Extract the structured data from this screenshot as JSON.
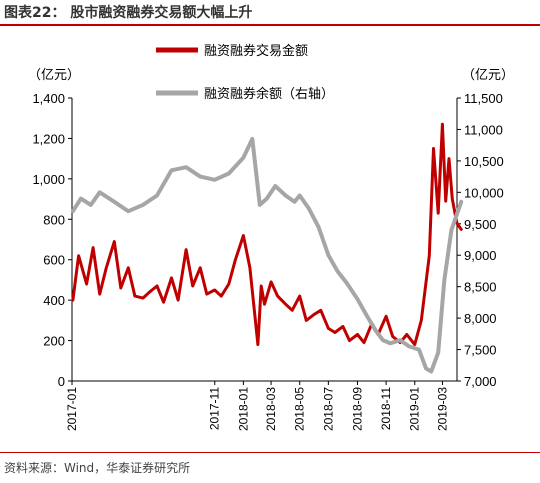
{
  "title": "图表22：  股市融资融券交易额大幅上升",
  "source": "资料来源：Wind，华泰证券研究所",
  "chart_data": {
    "type": "line",
    "left_axis": {
      "unit_label": "（亿元）",
      "range": [
        0,
        1400
      ],
      "ticks": [
        "0",
        "200",
        "400",
        "600",
        "800",
        "1,000",
        "1,200",
        "1,400"
      ]
    },
    "right_axis": {
      "unit_label": "（亿元）",
      "range": [
        7000,
        11500
      ],
      "ticks": [
        "7,000",
        "7,500",
        "8,000",
        "8,500",
        "9,000",
        "9,500",
        "10,000",
        "10,500",
        "11,000",
        "11,500"
      ]
    },
    "x_range": [
      "2017-01",
      "2019-04"
    ],
    "x_ticks": [
      "2017-01",
      "2017-11",
      "2018-01",
      "2018-03",
      "2018-05",
      "2018-07",
      "2018-09",
      "2018-11",
      "2019-01",
      "2019-03"
    ],
    "series": [
      {
        "name": "融资融券交易金额",
        "axis": "left",
        "color": "#c00000",
        "x": [
          "2017-01-03",
          "2017-01-15",
          "2017-02-01",
          "2017-02-15",
          "2017-03-01",
          "2017-03-15",
          "2017-04-01",
          "2017-04-15",
          "2017-05-01",
          "2017-05-15",
          "2017-06-01",
          "2017-06-15",
          "2017-07-01",
          "2017-07-15",
          "2017-08-01",
          "2017-08-15",
          "2017-09-01",
          "2017-09-15",
          "2017-10-01",
          "2017-10-15",
          "2017-11-01",
          "2017-11-15",
          "2017-12-01",
          "2017-12-15",
          "2018-01-01",
          "2018-01-15",
          "2018-02-01",
          "2018-02-08",
          "2018-02-15",
          "2018-03-01",
          "2018-03-15",
          "2018-04-01",
          "2018-04-15",
          "2018-05-01",
          "2018-05-15",
          "2018-06-01",
          "2018-06-15",
          "2018-07-01",
          "2018-07-15",
          "2018-08-01",
          "2018-08-15",
          "2018-09-01",
          "2018-09-15",
          "2018-10-01",
          "2018-10-15",
          "2018-11-01",
          "2018-11-15",
          "2018-12-01",
          "2018-12-15",
          "2019-01-01",
          "2019-01-15",
          "2019-02-01",
          "2019-02-10",
          "2019-02-20",
          "2019-03-01",
          "2019-03-08",
          "2019-03-15",
          "2019-03-22",
          "2019-04-01",
          "2019-04-10"
        ],
        "values": [
          400,
          620,
          480,
          660,
          430,
          560,
          690,
          460,
          560,
          420,
          410,
          440,
          470,
          390,
          510,
          400,
          650,
          470,
          560,
          430,
          450,
          420,
          480,
          600,
          720,
          560,
          180,
          470,
          380,
          490,
          420,
          380,
          350,
          420,
          300,
          330,
          350,
          260,
          240,
          270,
          200,
          230,
          190,
          280,
          230,
          320,
          220,
          190,
          230,
          180,
          300,
          620,
          1150,
          830,
          1270,
          890,
          1100,
          900,
          780,
          750
        ]
      },
      {
        "name": "融资融券余额（右轴）",
        "axis": "right",
        "color": "#a6a6a6",
        "x": [
          "2017-01-03",
          "2017-01-20",
          "2017-02-10",
          "2017-03-01",
          "2017-04-01",
          "2017-05-01",
          "2017-06-01",
          "2017-07-01",
          "2017-08-01",
          "2017-09-01",
          "2017-10-01",
          "2017-11-01",
          "2017-12-01",
          "2018-01-01",
          "2018-01-20",
          "2018-02-05",
          "2018-02-20",
          "2018-03-10",
          "2018-04-01",
          "2018-04-20",
          "2018-05-01",
          "2018-05-20",
          "2018-06-10",
          "2018-07-01",
          "2018-07-20",
          "2018-08-10",
          "2018-09-01",
          "2018-09-20",
          "2018-10-10",
          "2018-10-25",
          "2018-11-10",
          "2018-12-01",
          "2018-12-20",
          "2019-01-10",
          "2019-01-25",
          "2019-02-05",
          "2019-02-20",
          "2019-03-05",
          "2019-03-20",
          "2019-04-10"
        ],
        "values": [
          9700,
          9900,
          9800,
          10000,
          9850,
          9700,
          9800,
          9950,
          10350,
          10400,
          10250,
          10200,
          10300,
          10550,
          10850,
          9800,
          9900,
          10100,
          9950,
          9850,
          9950,
          9750,
          9450,
          9000,
          8750,
          8550,
          8300,
          8050,
          7800,
          7650,
          7600,
          7650,
          7550,
          7500,
          7200,
          7150,
          7450,
          8600,
          9400,
          9850
        ]
      }
    ]
  }
}
